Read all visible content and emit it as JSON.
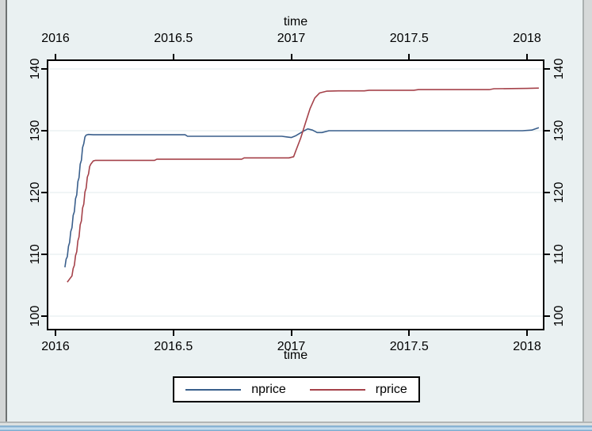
{
  "chart_data": {
    "type": "line",
    "top_axis_title": "time",
    "xlabel": "time",
    "ylabel": "",
    "grid": "horizontal",
    "legend_position": "bottom-center",
    "x_ticks": [
      {
        "v": 2016,
        "label": "2016"
      },
      {
        "v": 2016.5,
        "label": "2016.5"
      },
      {
        "v": 2017,
        "label": "2017"
      },
      {
        "v": 2017.5,
        "label": "2017.5"
      },
      {
        "v": 2018,
        "label": "2018"
      }
    ],
    "y_ticks": [
      {
        "v": 100,
        "label": "100"
      },
      {
        "v": 110,
        "label": "110"
      },
      {
        "v": 120,
        "label": "120"
      },
      {
        "v": 130,
        "label": "130"
      },
      {
        "v": 140,
        "label": "140"
      }
    ],
    "x_range": [
      2015.96,
      2018.07
    ],
    "y_range": [
      97.7,
      141.5
    ],
    "series": [
      {
        "name": "nprice",
        "color": "#3a5f8c",
        "points": [
          [
            2016.04,
            107.9
          ],
          [
            2016.045,
            109.2
          ],
          [
            2016.05,
            109.6
          ],
          [
            2016.055,
            111.3
          ],
          [
            2016.06,
            111.9
          ],
          [
            2016.065,
            113.7
          ],
          [
            2016.07,
            114.3
          ],
          [
            2016.075,
            116.3
          ],
          [
            2016.08,
            116.9
          ],
          [
            2016.085,
            119.0
          ],
          [
            2016.09,
            119.6
          ],
          [
            2016.095,
            121.8
          ],
          [
            2016.1,
            122.4
          ],
          [
            2016.105,
            124.6
          ],
          [
            2016.11,
            125.2
          ],
          [
            2016.115,
            127.3
          ],
          [
            2016.12,
            127.9
          ],
          [
            2016.125,
            129.0
          ],
          [
            2016.13,
            129.3
          ],
          [
            2016.14,
            129.4
          ],
          [
            2016.16,
            129.35
          ],
          [
            2016.55,
            129.35
          ],
          [
            2016.56,
            129.1
          ],
          [
            2016.96,
            129.1
          ],
          [
            2016.98,
            129.0
          ],
          [
            2017.0,
            128.9
          ],
          [
            2017.02,
            129.2
          ],
          [
            2017.05,
            129.9
          ],
          [
            2017.07,
            130.3
          ],
          [
            2017.09,
            130.1
          ],
          [
            2017.11,
            129.7
          ],
          [
            2017.13,
            129.7
          ],
          [
            2017.16,
            130.0
          ],
          [
            2017.6,
            130.0
          ],
          [
            2017.98,
            130.0
          ],
          [
            2018.02,
            130.1
          ],
          [
            2018.05,
            130.5
          ]
        ]
      },
      {
        "name": "rprice",
        "color": "#a5424a",
        "points": [
          [
            2016.05,
            105.5
          ],
          [
            2016.06,
            106.0
          ],
          [
            2016.07,
            106.5
          ],
          [
            2016.075,
            107.7
          ],
          [
            2016.08,
            108.2
          ],
          [
            2016.085,
            109.8
          ],
          [
            2016.09,
            110.4
          ],
          [
            2016.095,
            112.2
          ],
          [
            2016.1,
            112.8
          ],
          [
            2016.105,
            114.8
          ],
          [
            2016.11,
            115.4
          ],
          [
            2016.115,
            117.5
          ],
          [
            2016.12,
            118.1
          ],
          [
            2016.125,
            120.1
          ],
          [
            2016.13,
            120.7
          ],
          [
            2016.135,
            122.5
          ],
          [
            2016.14,
            123.0
          ],
          [
            2016.145,
            124.2
          ],
          [
            2016.15,
            124.6
          ],
          [
            2016.16,
            125.1
          ],
          [
            2016.17,
            125.2
          ],
          [
            2016.42,
            125.2
          ],
          [
            2016.43,
            125.4
          ],
          [
            2016.79,
            125.4
          ],
          [
            2016.8,
            125.6
          ],
          [
            2016.99,
            125.6
          ],
          [
            2017.01,
            125.8
          ],
          [
            2017.02,
            126.8
          ],
          [
            2017.04,
            128.8
          ],
          [
            2017.06,
            131.2
          ],
          [
            2017.08,
            133.6
          ],
          [
            2017.1,
            135.3
          ],
          [
            2017.12,
            136.1
          ],
          [
            2017.15,
            136.4
          ],
          [
            2017.2,
            136.45
          ],
          [
            2017.31,
            136.45
          ],
          [
            2017.33,
            136.55
          ],
          [
            2017.52,
            136.55
          ],
          [
            2017.54,
            136.65
          ],
          [
            2017.84,
            136.65
          ],
          [
            2017.86,
            136.8
          ],
          [
            2018.0,
            136.85
          ],
          [
            2018.05,
            136.9
          ]
        ]
      }
    ]
  },
  "colors": {
    "canvas_bg": "#eaf1f2",
    "plot_bg": "#ffffff",
    "gridline": "#e7eff1",
    "axis": "#000000",
    "window_border_gray": "#6e7272",
    "taskbar_blue_light": "#cfe3f2",
    "taskbar_blue_dark": "#6b9dc6"
  }
}
